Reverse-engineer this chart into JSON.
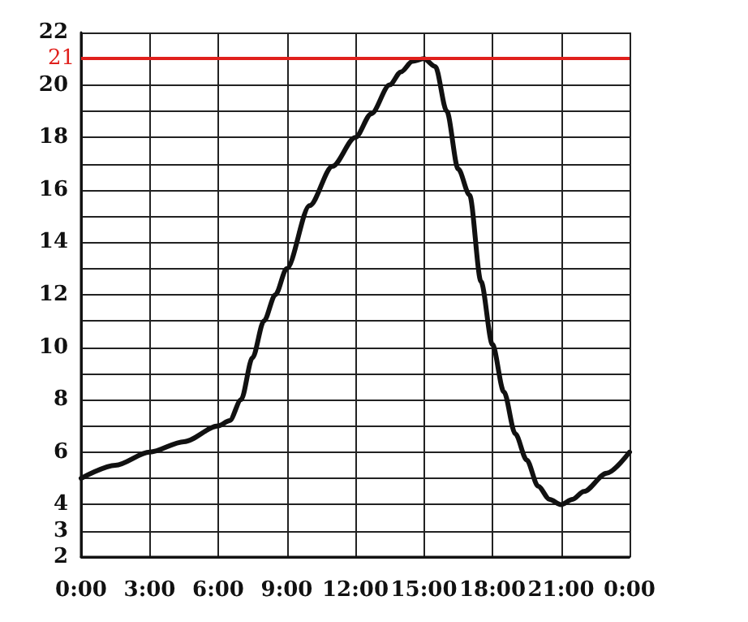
{
  "chart_data": {
    "type": "line",
    "x": [
      0,
      1.5,
      3,
      4.5,
      6,
      6.5,
      7,
      7.5,
      8,
      8.5,
      9,
      10,
      11,
      12,
      12.7,
      13.5,
      14,
      14.5,
      15,
      15.5,
      16,
      16.5,
      17,
      17.5,
      18,
      18.5,
      19,
      19.5,
      20,
      20.5,
      21,
      21.5,
      22,
      23,
      24
    ],
    "series": [
      {
        "color": "#111111",
        "values": [
          5,
          5.5,
          6,
          6.4,
          7,
          7.2,
          8,
          9.6,
          11,
          12,
          13,
          15.4,
          16.9,
          18,
          18.9,
          20,
          20.5,
          20.9,
          21,
          20.7,
          19,
          16.8,
          15.8,
          12.5,
          10.1,
          8.3,
          6.7,
          5.7,
          4.7,
          4.2,
          4,
          4.2,
          4.5,
          5.2,
          6
        ]
      }
    ],
    "xlim": [
      0,
      24
    ],
    "xticks": [
      {
        "value": 0,
        "label": "0:00"
      },
      {
        "value": 3,
        "label": "3:00"
      },
      {
        "value": 6,
        "label": "6:00"
      },
      {
        "value": 9,
        "label": "9:00"
      },
      {
        "value": 12,
        "label": "12:00"
      },
      {
        "value": 15,
        "label": "15:00"
      },
      {
        "value": 18,
        "label": "18:00"
      },
      {
        "value": 21,
        "label": "21:00"
      },
      {
        "value": 24,
        "label": "0:00"
      }
    ],
    "ylim": [
      2,
      22
    ],
    "yticks": [
      2,
      3,
      4,
      {
        "value": 5,
        "label": null
      },
      6,
      {
        "value": 7,
        "label": null
      },
      8,
      {
        "value": 9,
        "label": null
      },
      10,
      {
        "value": 11,
        "label": null
      },
      12,
      {
        "value": 13,
        "label": null
      },
      14,
      {
        "value": 15,
        "label": null
      },
      16,
      {
        "value": 17,
        "label": null
      },
      18,
      {
        "value": 19,
        "label": null
      },
      20,
      {
        "value": 21,
        "label": null
      },
      22
    ],
    "grid": true,
    "marker": "none",
    "line_style": "solid",
    "ref_lines": [
      {
        "axis": "y",
        "value": 21,
        "label": "21",
        "color": "#e0201c"
      }
    ]
  }
}
